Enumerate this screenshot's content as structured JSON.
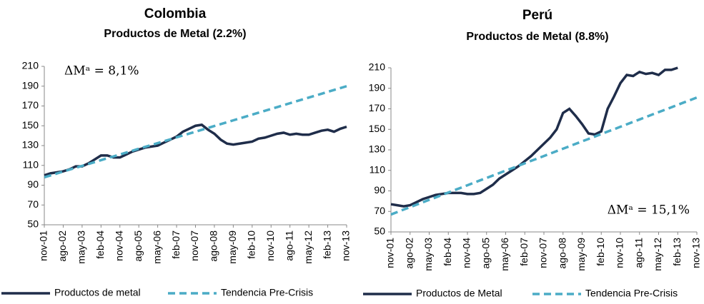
{
  "chart_data": [
    {
      "type": "line",
      "title": "Colombia",
      "subtitle": "Productos de Metal (2.2%)",
      "annotation": "ΔMᵃ = 8,1%",
      "categories": [
        "nov-01",
        null,
        null,
        "ago-02",
        null,
        null,
        "may-03",
        null,
        null,
        "feb-04",
        null,
        null,
        "nov-04",
        null,
        null,
        "ago-05",
        null,
        null,
        "may-06",
        null,
        null,
        "feb-07",
        null,
        null,
        "nov-07",
        null,
        null,
        "ago-08",
        null,
        null,
        "may-09",
        null,
        null,
        "feb-10",
        null,
        null,
        "nov-10",
        null,
        null,
        "ago-11",
        null,
        null,
        "may-12",
        null,
        null,
        "feb-13",
        null,
        null,
        "nov-13"
      ],
      "series": [
        {
          "name": "Productos  de metal",
          "color": "#1f2d4a",
          "dash": false,
          "values": [
            100,
            102,
            103,
            104,
            106,
            109,
            109,
            112,
            116,
            120,
            120,
            118,
            118,
            121,
            124,
            126,
            128,
            129,
            130,
            133,
            136,
            139,
            144,
            147,
            150,
            151,
            146,
            142,
            136,
            132,
            131,
            132,
            133,
            134,
            137,
            138,
            140,
            142,
            143,
            141,
            142,
            141,
            141,
            143,
            145,
            146,
            144,
            147,
            149
          ]
        },
        {
          "name": "Tendencia Pre-Crisis",
          "color": "#4bacc6",
          "dash": true,
          "values": [
            98,
            99.9,
            101.8,
            103.8,
            105.7,
            107.6,
            109.5,
            111.4,
            113.3,
            115.3,
            117.2,
            119.1,
            121,
            122.9,
            124.8,
            126.8,
            128.7,
            130.6,
            132.5,
            134.4,
            136.3,
            138.3,
            140.2,
            142.1,
            144,
            145.9,
            147.8,
            149.8,
            151.7,
            153.6,
            155.5,
            157.4,
            159.3,
            161.3,
            163.2,
            165.1,
            167,
            168.9,
            170.8,
            172.8,
            174.7,
            176.6,
            178.5,
            180.4,
            182.3,
            184.3,
            186.2,
            188.1,
            190
          ]
        }
      ],
      "ylim": [
        50,
        210
      ],
      "yticks": [
        50,
        70,
        90,
        110,
        130,
        150,
        170,
        190,
        210
      ],
      "grid": false
    },
    {
      "type": "line",
      "title": "Perú",
      "subtitle": "Productos de Metal (8.8%)",
      "annotation": "ΔMᵃ = 15,1%",
      "categories": [
        "nov-01",
        null,
        null,
        "ago-02",
        null,
        null,
        "may-03",
        null,
        null,
        "feb-04",
        null,
        null,
        "nov-04",
        null,
        null,
        "ago-05",
        null,
        null,
        "may-06",
        null,
        null,
        "feb-07",
        null,
        null,
        "nov-07",
        null,
        null,
        "ago-08",
        null,
        null,
        "may-09",
        null,
        null,
        "feb-10",
        null,
        null,
        "nov-10",
        null,
        null,
        "ago-11",
        null,
        null,
        "may-12",
        null,
        null,
        "feb-13",
        null,
        null,
        "nov-13"
      ],
      "series": [
        {
          "name": "Productos de  Metal",
          "color": "#1f2d4a",
          "dash": false,
          "values": [
            77,
            76,
            75,
            76,
            79,
            82,
            84,
            86,
            87,
            88,
            88,
            88,
            87,
            87,
            88,
            92,
            96,
            102,
            106,
            110,
            114,
            119,
            124,
            130,
            136,
            142,
            150,
            166,
            170,
            163,
            155,
            146,
            145,
            148,
            170,
            182,
            195,
            203,
            202,
            206,
            204,
            205,
            203,
            208,
            208,
            210,
            null,
            null,
            null
          ]
        },
        {
          "name": "Tendencia Pre-Crisis",
          "color": "#4bacc6",
          "dash": true,
          "values": [
            67,
            69.4,
            71.8,
            74.1,
            76.5,
            78.9,
            81.3,
            83.6,
            86,
            88.4,
            90.8,
            93.1,
            95.5,
            97.9,
            100.3,
            102.6,
            105,
            107.4,
            109.8,
            112.1,
            114.5,
            116.9,
            119.3,
            121.6,
            124,
            126.4,
            128.8,
            131.1,
            133.5,
            135.9,
            138.3,
            140.6,
            143,
            145.4,
            147.8,
            150.1,
            152.5,
            154.9,
            157.3,
            159.6,
            162,
            164.4,
            166.8,
            169.1,
            171.5,
            173.9,
            176.3,
            178.6,
            181
          ]
        }
      ],
      "ylim": [
        50,
        210
      ],
      "yticks": [
        50,
        70,
        90,
        110,
        130,
        150,
        170,
        190,
        210
      ],
      "grid": false
    }
  ]
}
